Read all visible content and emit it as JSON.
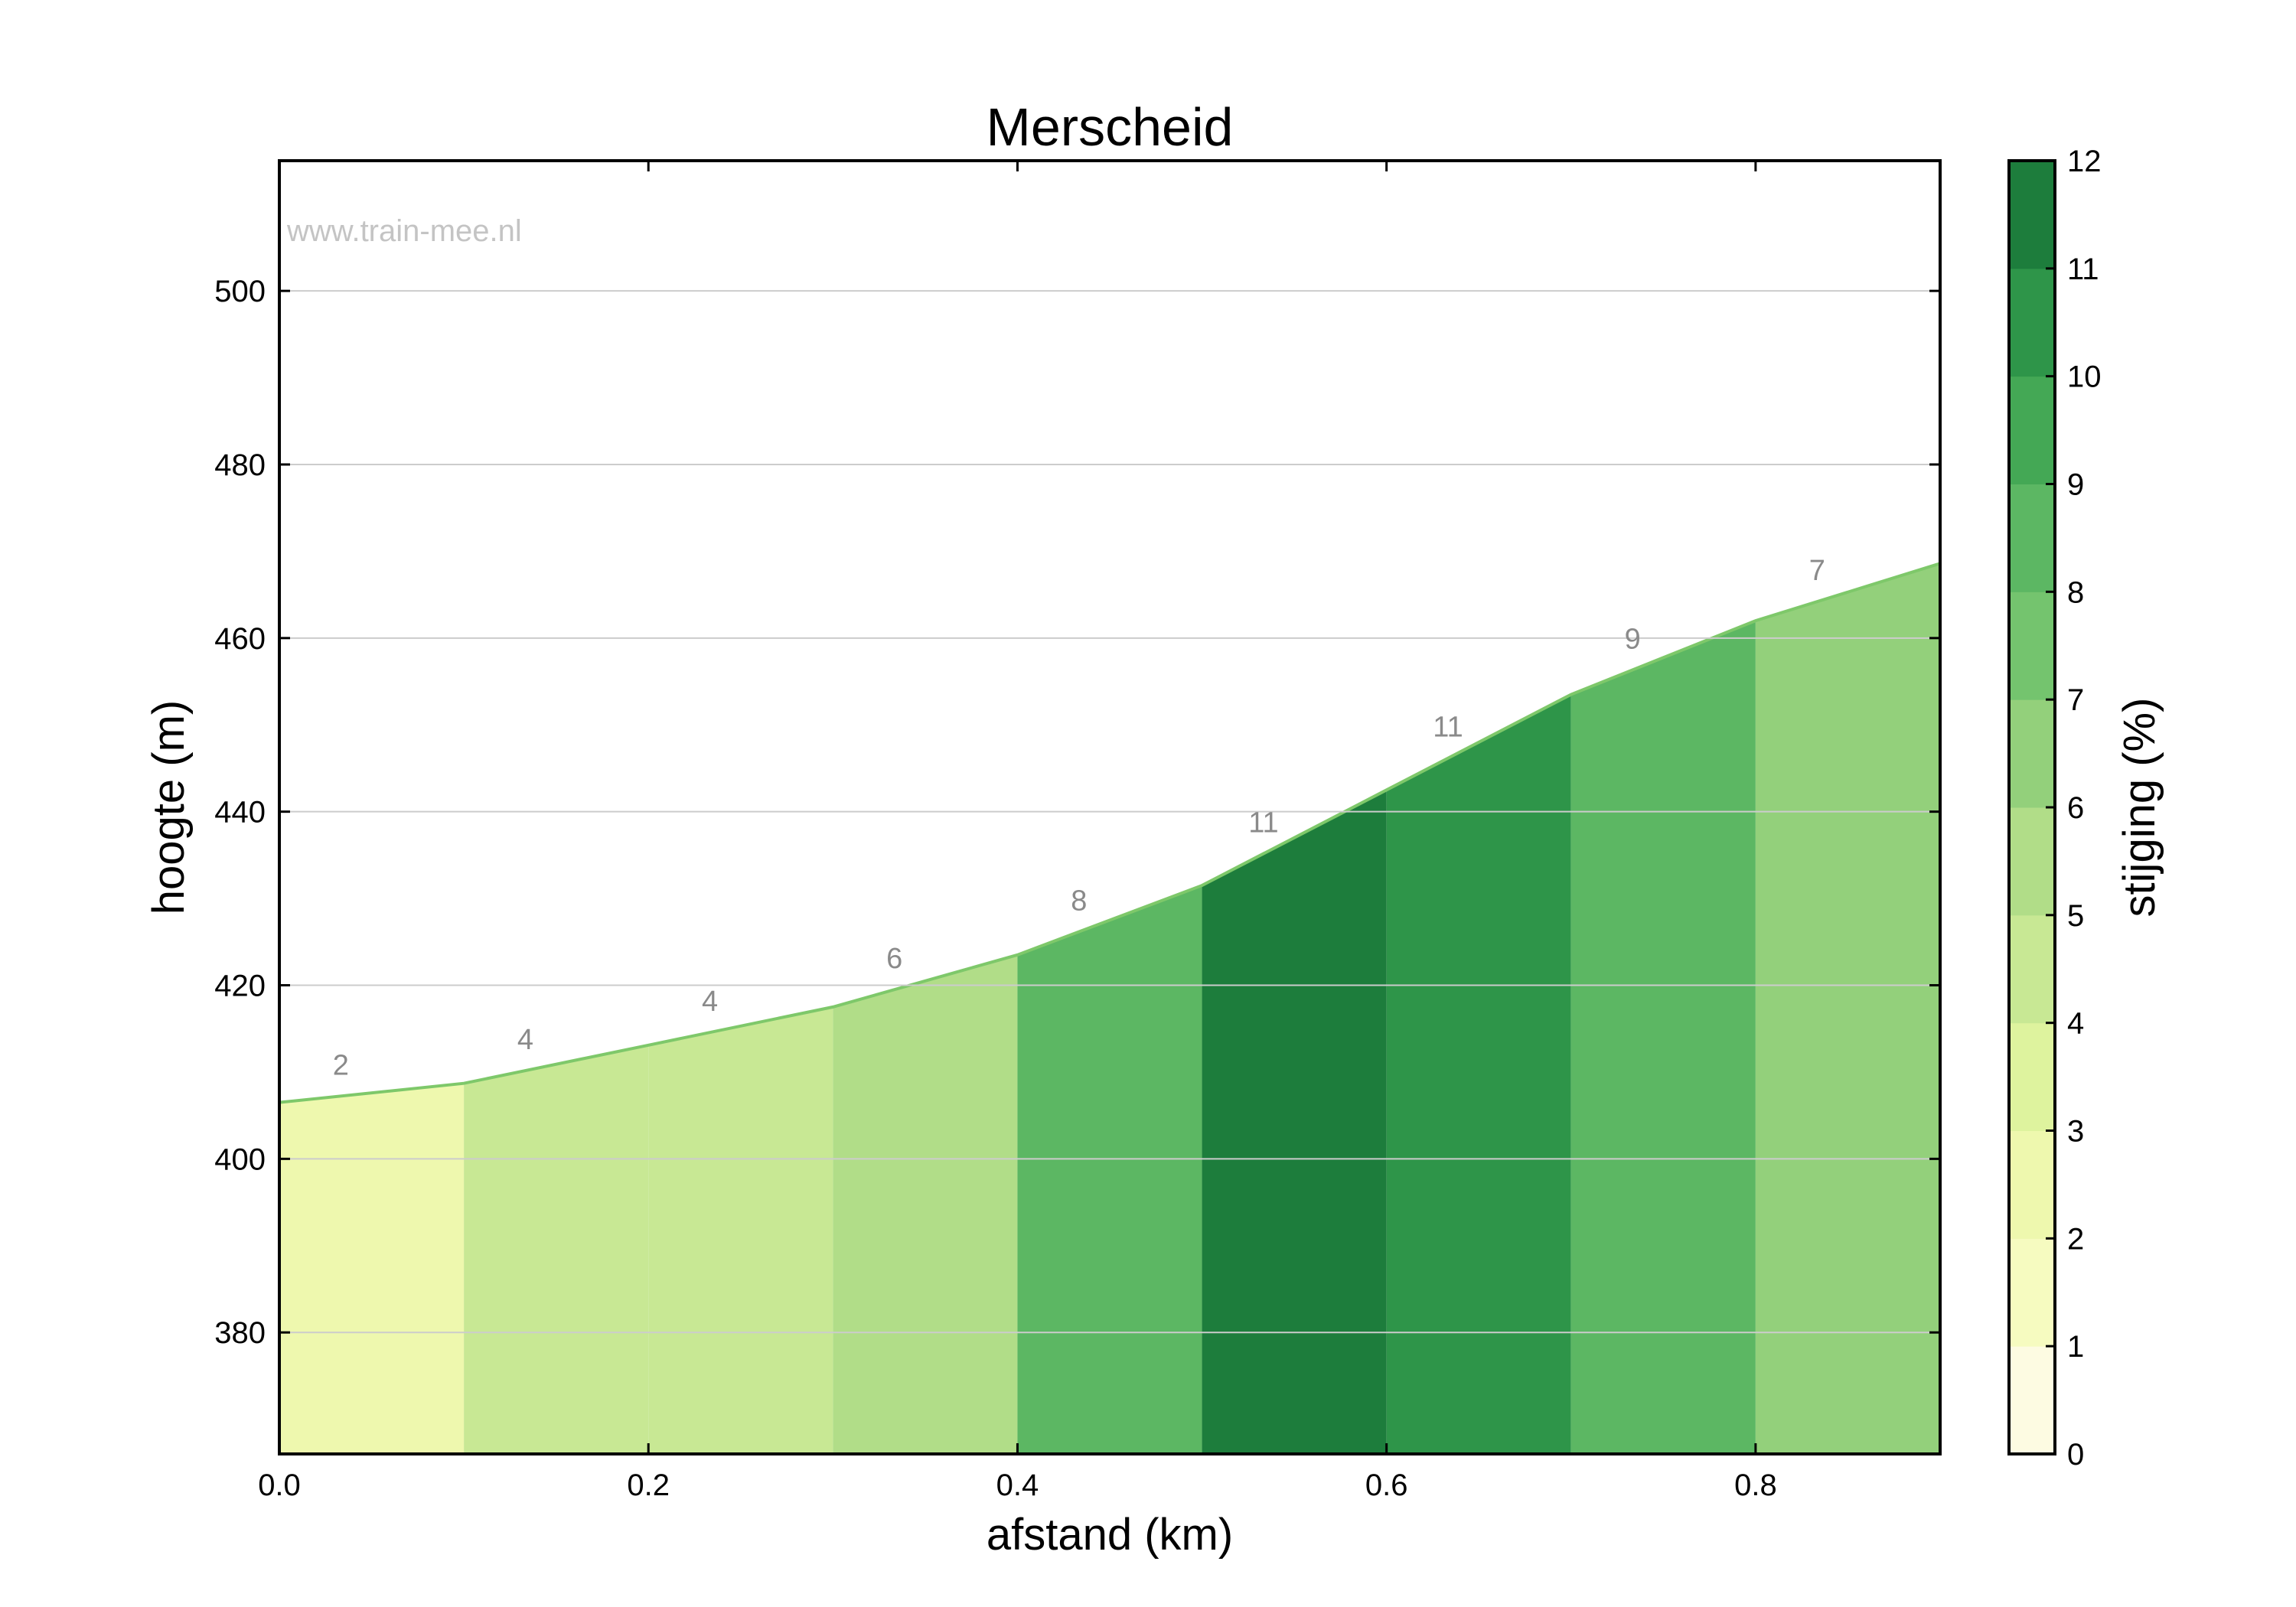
{
  "watermark": "www.train-mee.nl",
  "chart_data": {
    "type": "area",
    "title": "Merscheid",
    "xlabel": "afstand (km)",
    "ylabel": "hoogte (m)",
    "xlim": [
      0.0,
      0.9
    ],
    "ylim": [
      366,
      515
    ],
    "x_ticks": [
      "0.0",
      "0.2",
      "0.4",
      "0.6",
      "0.8"
    ],
    "y_ticks": [
      "380",
      "400",
      "420",
      "440",
      "460",
      "480",
      "500"
    ],
    "grid": "horizontal",
    "x": [
      0.0,
      0.1,
      0.2,
      0.3,
      0.4,
      0.5,
      0.6,
      0.7,
      0.8,
      0.9
    ],
    "elevation": [
      406.5,
      408.7,
      413.1,
      417.5,
      423.5,
      431.5,
      442.5,
      453.5,
      462.0,
      468.6
    ],
    "segments": [
      {
        "from": 0.0,
        "to": 0.1,
        "grade": 2,
        "grade_label": "2",
        "color": "#eef8ae"
      },
      {
        "from": 0.1,
        "to": 0.2,
        "grade": 4,
        "grade_label": "4",
        "color": "#c8e894"
      },
      {
        "from": 0.2,
        "to": 0.3,
        "grade": 4,
        "grade_label": "4",
        "color": "#c8e894"
      },
      {
        "from": 0.3,
        "to": 0.4,
        "grade": 6,
        "grade_label": "6",
        "color": "#b1dd88"
      },
      {
        "from": 0.4,
        "to": 0.5,
        "grade": 8,
        "grade_label": "8",
        "color": "#5cb763"
      },
      {
        "from": 0.5,
        "to": 0.6,
        "grade": 11,
        "grade_label": "11",
        "color": "#1d7d3c"
      },
      {
        "from": 0.6,
        "to": 0.7,
        "grade": 11,
        "grade_label": "11",
        "color": "#2e9549"
      },
      {
        "from": 0.7,
        "to": 0.8,
        "grade": 9,
        "grade_label": "9",
        "color": "#5cb763"
      },
      {
        "from": 0.8,
        "to": 0.9,
        "grade": 7,
        "grade_label": "7",
        "color": "#93d07b"
      }
    ],
    "colorbar": {
      "label": "stijging (%)",
      "ticks": [
        "0",
        "1",
        "2",
        "3",
        "4",
        "5",
        "6",
        "7",
        "8",
        "9",
        "10",
        "11",
        "12"
      ],
      "colors": [
        "#fdfbe2",
        "#f6fbc0",
        "#eef8ae",
        "#def39e",
        "#c8e894",
        "#b1dd88",
        "#93d07b",
        "#74c46e",
        "#5cb763",
        "#44a855",
        "#2e9549",
        "#1d7d3c"
      ]
    },
    "outline_color": "#7ec86a"
  }
}
